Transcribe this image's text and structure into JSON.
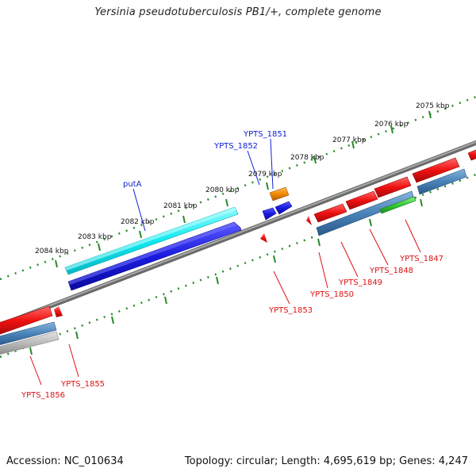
{
  "title": "Yersinia pseudotuberculosis PB1/+, complete genome",
  "footer": {
    "accession": "Accession: NC_010634",
    "info": "Topology: circular; Length: 4,695,619 bp; Genes: 4,247"
  },
  "colors": {
    "backbone": "#8a8a8a",
    "tick": "#2a8a2a",
    "forward_label": "#1020d0",
    "reverse_label": "#dd1111",
    "cyan": "#10e8f0",
    "blue": "#1a1ae0",
    "orange": "#f08a00",
    "red": "#ee1111",
    "steel": "#4a82b8",
    "green": "#33cc33",
    "grey": "#b8b8b8"
  },
  "kbp_labels": [
    {
      "text": "2075 kbp"
    },
    {
      "text": "2076 kbp"
    },
    {
      "text": "2077 kbp"
    },
    {
      "text": "2078 kbp"
    },
    {
      "text": "2079 kbp"
    },
    {
      "text": "2080 kbp"
    },
    {
      "text": "2081 kbp"
    },
    {
      "text": "2082 kbp"
    },
    {
      "text": "2083 kbp"
    },
    {
      "text": "2084 kbp"
    }
  ],
  "forward_labels": [
    {
      "text": "YPTS_1851"
    },
    {
      "text": "YPTS_1852"
    },
    {
      "text": "putA"
    }
  ],
  "reverse_labels": [
    {
      "text": "YPTS_1847"
    },
    {
      "text": "YPTS_1848"
    },
    {
      "text": "YPTS_1849"
    },
    {
      "text": "YPTS_1850"
    },
    {
      "text": "YPTS_1853"
    },
    {
      "text": "YPTS_1855"
    },
    {
      "text": "YPTS_1856"
    }
  ]
}
